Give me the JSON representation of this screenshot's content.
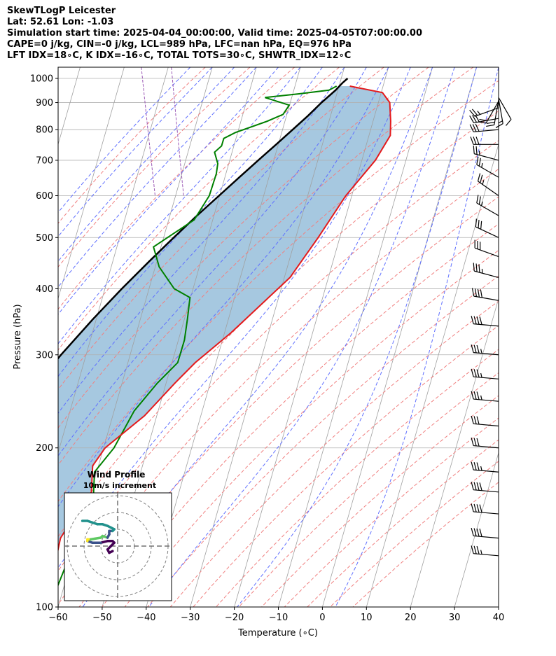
{
  "header": {
    "line1": "SkewTLogP Leicester",
    "line2": "Lat: 52.61   Lon: -1.03",
    "line3": "Simulation start time: 2025-04-04_00:00:00, Valid time: 2025-04-05T07:00:00.00",
    "line4": "CAPE=0 j/kg, CIN=-0 j/kg, LCL=989 hPa, LFC=nan hPa, EQ=976 hPa",
    "line5": "LFT IDX=18∘C, K IDX=-16∘C, TOTAL TOTS=30∘C, SHWTR_IDX=12∘C"
  },
  "chart_data": {
    "type": "line",
    "skew": 35,
    "xlabel": "Temperature (∘C)",
    "ylabel": "Pressure (hPa)",
    "xlim": [
      -60,
      40
    ],
    "ylim": [
      1050,
      100
    ],
    "yscale": "log",
    "grid": true,
    "xticks": [
      "−60",
      "−50",
      "−40",
      "−30",
      "−20",
      "−10",
      "0",
      "10",
      "20",
      "30",
      "40"
    ],
    "xtick_values": [
      -60,
      -50,
      -40,
      -30,
      -20,
      -10,
      0,
      10,
      20,
      30,
      40
    ],
    "yticks": [
      "100",
      "200",
      "300",
      "400",
      "500",
      "600",
      "700",
      "800",
      "900",
      "1000"
    ],
    "ytick_values": [
      100,
      200,
      300,
      400,
      500,
      600,
      700,
      800,
      900,
      1000
    ],
    "colors": {
      "temperature": "#e41a1c",
      "dewpoint": "#008000",
      "parcel": "#000000",
      "shading": "#a6c8e0",
      "dry_adiabats": "#f08080",
      "moist_adiabats": "#6070ff",
      "mixing_ratio": "#9b59b6",
      "isotherms": "#a0a0a0"
    },
    "series": [
      {
        "key": "temperature",
        "pressure": [
          967,
          940,
          900,
          830,
          780,
          700,
          600,
          500,
          420,
          330,
          290,
          265,
          230,
          200,
          185,
          165,
          150,
          135,
          125,
          110,
          100
        ],
        "values": [
          5,
          12,
          13,
          12,
          11,
          6,
          -3,
          -12,
          -21,
          -38,
          -48,
          -54,
          -63,
          -74,
          -78,
          -80,
          -85,
          -90,
          -92,
          -98,
          -102
        ]
      },
      {
        "key": "dewpoint",
        "pressure": [
          967,
          950,
          935,
          920,
          890,
          855,
          830,
          790,
          770,
          745,
          725,
          690,
          660,
          600,
          540,
          480,
          440,
          400,
          385,
          350,
          320,
          290,
          265,
          235,
          200,
          180,
          160,
          140,
          100
        ],
        "values": [
          2,
          0,
          -7,
          -15,
          -10,
          -12,
          -16,
          -24,
          -27,
          -28,
          -30,
          -30,
          -31,
          -34,
          -39,
          -50,
          -50,
          -48,
          -45,
          -47,
          -49,
          -52,
          -58,
          -65,
          -72,
          -78,
          -80,
          -85,
          -97
        ]
      },
      {
        "key": "parcel",
        "pressure": [
          1000,
          980,
          950,
          900,
          850,
          800,
          750,
          700,
          650,
          600,
          550,
          500,
          450,
          400,
          350,
          300,
          250,
          200,
          150,
          100
        ],
        "values": [
          5,
          3.5,
          1.5,
          -2.5,
          -6.4,
          -10.8,
          -15.5,
          -20.6,
          -26,
          -31.8,
          -38.1,
          -44.8,
          -52,
          -59.9,
          -68.5,
          -78,
          -88.5,
          -100.5,
          -114.5,
          -131
        ]
      }
    ],
    "wind_barbs": {
      "pressure": [
        920,
        915,
        910,
        905,
        880,
        840,
        800,
        750,
        700,
        650,
        600,
        550,
        500,
        460,
        420,
        380,
        340,
        300,
        270,
        245,
        220,
        200,
        180,
        165,
        150,
        135,
        125
      ],
      "direction_deg": [
        150,
        170,
        190,
        210,
        250,
        260,
        265,
        270,
        285,
        300,
        305,
        300,
        295,
        290,
        285,
        280,
        275,
        275,
        275,
        275,
        275,
        275,
        275,
        275,
        275,
        275,
        275
      ],
      "speed_kt": [
        10,
        15,
        20,
        20,
        25,
        30,
        30,
        30,
        25,
        25,
        25,
        25,
        30,
        30,
        35,
        40,
        40,
        35,
        35,
        35,
        30,
        30,
        35,
        40,
        40,
        40,
        35
      ]
    },
    "hodograph": {
      "title": "Wind Profile",
      "subtitle": "10m/s increment",
      "ring_step_ms": 10,
      "ring_count": 3,
      "points_u": [
        -3,
        -5,
        -6,
        -4,
        -3,
        -2,
        -3,
        -6,
        -10,
        -15,
        -18,
        -18,
        -16,
        -10,
        -9,
        -6,
        -5,
        -5,
        -3,
        -2,
        -4,
        -6,
        -9,
        -12,
        -15,
        -18,
        -21
      ],
      "points_v": [
        -3,
        -4,
        -2,
        0,
        1,
        2,
        3,
        3,
        2,
        2,
        3,
        4,
        4,
        5,
        6,
        5,
        7,
        9,
        9,
        10,
        11,
        12,
        13,
        13,
        14,
        15,
        15
      ]
    }
  }
}
